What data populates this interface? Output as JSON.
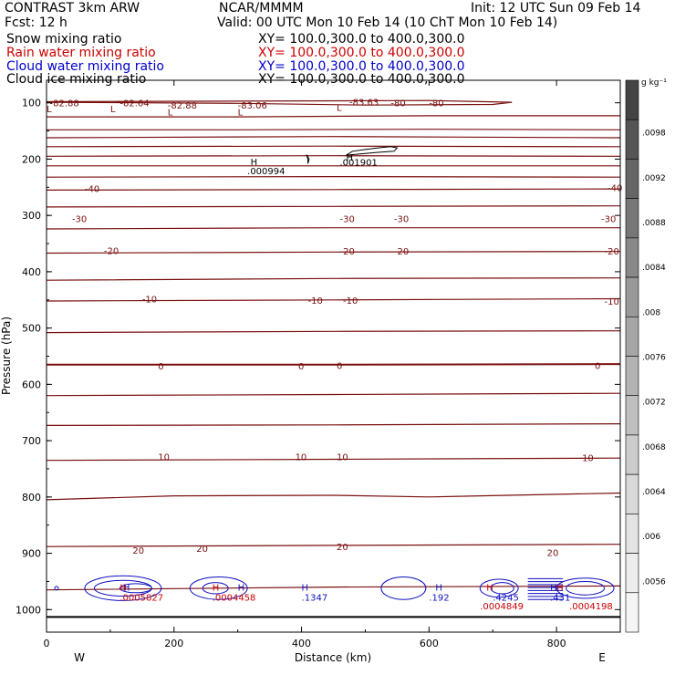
{
  "header": {
    "title": "CONTRAST  3km ARW",
    "org": "NCAR/MMMM",
    "init": "Init: 12 UTC Sun 09 Feb 14",
    "fcst": "Fcst:   12 h",
    "valid": "Valid: 00 UTC Mon 10 Feb 14 (10 ChT Mon 10 Feb 14)"
  },
  "legend": [
    {
      "label": "Snow mixing ratio",
      "xy": "XY= 100.0,300.0 to 400.0,300.0",
      "color": "#000000"
    },
    {
      "label": "Rain water mixing ratio",
      "xy": "XY= 100.0,300.0 to 400.0,300.0",
      "color": "#cc0000"
    },
    {
      "label": "Cloud water mixing ratio",
      "xy": "XY= 100.0,300.0 to 400.0,300.0",
      "color": "#0000cc"
    },
    {
      "label": "Cloud ice mixing ratio",
      "xy": "XY= 100.0,300.0 to 400.0,300.0",
      "color": "#000000"
    }
  ],
  "chart_data": {
    "type": "contour",
    "xlabel": "Distance (km)",
    "ylabel": "Pressure (hPa)",
    "xlim": [
      0,
      900
    ],
    "ylim": [
      1040,
      60
    ],
    "xticks": [
      0,
      200,
      400,
      600,
      800
    ],
    "yticks": [
      100,
      200,
      300,
      400,
      500,
      600,
      700,
      800,
      900,
      1000
    ],
    "x_end_labels": {
      "left": "W",
      "right": "E"
    },
    "temperature_contours": {
      "color": "#7a0f0f",
      "levels": [
        {
          "p": [
            [
              0,
              99
            ],
            [
              300,
              101
            ],
            [
              500,
              104
            ],
            [
              700,
              103
            ],
            [
              730,
              99
            ],
            [
              600,
              96
            ],
            [
              0,
              98
            ]
          ],
          "closed": true
        },
        {
          "p": [
            [
              0,
              125
            ],
            [
              300,
              125
            ],
            [
              600,
              123
            ],
            [
              900,
              123
            ]
          ]
        },
        {
          "p": [
            [
              0,
              148
            ],
            [
              300,
              148
            ],
            [
              600,
              147
            ],
            [
              900,
              148
            ]
          ]
        },
        {
          "p": [
            [
              0,
              162
            ],
            [
              450,
              160
            ],
            [
              900,
              162
            ]
          ]
        },
        {
          "p": [
            [
              0,
              178
            ],
            [
              450,
              177
            ],
            [
              900,
              178
            ]
          ]
        },
        {
          "p": [
            [
              0,
              195
            ],
            [
              450,
              194
            ],
            [
              900,
              195
            ]
          ]
        },
        {
          "p": [
            [
              0,
              212
            ],
            [
              450,
              212
            ],
            [
              900,
              212
            ]
          ]
        },
        {
          "p": [
            [
              0,
              232
            ],
            [
              450,
              231
            ],
            [
              900,
              232
            ]
          ]
        },
        {
          "p": [
            [
              0,
              255
            ],
            [
              450,
              254
            ],
            [
              900,
              253
            ]
          ]
        },
        {
          "p": [
            [
              0,
              285
            ],
            [
              450,
              284
            ],
            [
              900,
              283
            ]
          ]
        },
        {
          "p": [
            [
              0,
              324
            ],
            [
              450,
              322
            ],
            [
              900,
              322
            ]
          ]
        },
        {
          "p": [
            [
              0,
              367
            ],
            [
              450,
              365
            ],
            [
              900,
              364
            ]
          ]
        },
        {
          "p": [
            [
              0,
              415
            ],
            [
              450,
              412
            ],
            [
              900,
              411
            ]
          ]
        },
        {
          "p": [
            [
              0,
              452
            ],
            [
              450,
              450
            ],
            [
              900,
              448
            ]
          ]
        },
        {
          "p": [
            [
              0,
              508
            ],
            [
              450,
              506
            ],
            [
              900,
              505
            ]
          ]
        },
        {
          "p": [
            [
              0,
              565
            ],
            [
              450,
              565
            ],
            [
              900,
              564
            ]
          ]
        },
        {
          "p": [
            [
              0,
              620
            ],
            [
              450,
              618
            ],
            [
              900,
              616
            ]
          ]
        },
        {
          "p": [
            [
              0,
              673
            ],
            [
              450,
              672
            ],
            [
              900,
              670
            ]
          ]
        },
        {
          "p": [
            [
              0,
              735
            ],
            [
              450,
              733
            ],
            [
              900,
              731
            ]
          ]
        },
        {
          "p": [
            [
              0,
              805
            ],
            [
              200,
              798
            ],
            [
              450,
              797
            ],
            [
              600,
              800
            ],
            [
              900,
              793
            ]
          ]
        },
        {
          "p": [
            [
              0,
              888
            ],
            [
              450,
              886
            ],
            [
              900,
              884
            ]
          ]
        },
        {
          "p": [
            [
              0,
              965
            ],
            [
              450,
              960
            ],
            [
              900,
              958
            ]
          ]
        }
      ],
      "labels": [
        {
          "x": 0,
          "p": 110,
          "t": "L"
        },
        {
          "x": 5,
          "p": 100,
          "t": "-82.88"
        },
        {
          "x": 100,
          "p": 110,
          "t": "L"
        },
        {
          "x": 115,
          "p": 100,
          "t": "-82.64"
        },
        {
          "x": 190,
          "p": 116,
          "t": "L"
        },
        {
          "x": 190,
          "p": 104,
          "t": "-82.88"
        },
        {
          "x": 300,
          "p": 116,
          "t": "L"
        },
        {
          "x": 300,
          "p": 104,
          "t": "-83.06"
        },
        {
          "x": 455,
          "p": 108,
          "t": "L"
        },
        {
          "x": 475,
          "p": 98,
          "t": "-83.63"
        },
        {
          "x": 540,
          "p": 100,
          "t": "-80"
        },
        {
          "x": 600,
          "p": 100,
          "t": "-80"
        },
        {
          "x": 60,
          "p": 252,
          "t": "-40"
        },
        {
          "x": 880,
          "p": 250,
          "t": "-40"
        },
        {
          "x": 40,
          "p": 305,
          "t": "-30"
        },
        {
          "x": 460,
          "p": 305,
          "t": "-30"
        },
        {
          "x": 545,
          "p": 305,
          "t": "-30"
        },
        {
          "x": 870,
          "p": 305,
          "t": "-30"
        },
        {
          "x": 90,
          "p": 362,
          "t": "-20"
        },
        {
          "x": 460,
          "p": 363,
          "t": "-20"
        },
        {
          "x": 545,
          "p": 363,
          "t": "-20"
        },
        {
          "x": 875,
          "p": 363,
          "t": "-20"
        },
        {
          "x": 150,
          "p": 448,
          "t": "-10"
        },
        {
          "x": 410,
          "p": 450,
          "t": "-10"
        },
        {
          "x": 465,
          "p": 450,
          "t": "-10"
        },
        {
          "x": 875,
          "p": 452,
          "t": "-10"
        },
        {
          "x": 175,
          "p": 567,
          "t": "0"
        },
        {
          "x": 395,
          "p": 567,
          "t": "0"
        },
        {
          "x": 455,
          "p": 566,
          "t": "0"
        },
        {
          "x": 860,
          "p": 566,
          "t": "0"
        },
        {
          "x": 175,
          "p": 728,
          "t": "10"
        },
        {
          "x": 390,
          "p": 728,
          "t": "10"
        },
        {
          "x": 455,
          "p": 728,
          "t": "10"
        },
        {
          "x": 840,
          "p": 730,
          "t": "10"
        },
        {
          "x": 135,
          "p": 894,
          "t": "20"
        },
        {
          "x": 235,
          "p": 891,
          "t": "20"
        },
        {
          "x": 455,
          "p": 888,
          "t": "20"
        },
        {
          "x": 785,
          "p": 898,
          "t": "20"
        }
      ]
    },
    "ice_contours": {
      "color": "#000000",
      "paths": [
        [
          [
            470,
            193
          ],
          [
            480,
            186
          ],
          [
            500,
            183
          ],
          [
            520,
            180
          ],
          [
            540,
            178
          ],
          [
            550,
            180
          ],
          [
            545,
            186
          ],
          [
            520,
            188
          ],
          [
            500,
            190
          ],
          [
            470,
            193
          ]
        ],
        [
          [
            410,
            208
          ],
          [
            412,
            200
          ],
          [
            408,
            192
          ],
          [
            410,
            200
          ],
          [
            410,
            208
          ]
        ]
      ],
      "labels": [
        {
          "x": 470,
          "p": 196,
          "t": "H"
        },
        {
          "x": 460,
          "p": 205,
          "t": ".001901"
        },
        {
          "x": 320,
          "p": 204,
          "t": "H"
        },
        {
          "x": 315,
          "p": 220,
          "t": ".000994"
        }
      ]
    },
    "snow_line": {
      "color": "#000000",
      "p": 1013
    },
    "cloud_water": {
      "color": "#1010c0",
      "rings": [
        {
          "x": 120,
          "p": 962,
          "rx": 60,
          "rp": 22
        },
        {
          "x": 120,
          "p": 962,
          "rx": 45,
          "rp": 14
        },
        {
          "x": 140,
          "p": 962,
          "rx": 25,
          "rp": 8
        },
        {
          "x": 270,
          "p": 962,
          "rx": 45,
          "rp": 20
        },
        {
          "x": 265,
          "p": 962,
          "rx": 20,
          "rp": 10
        },
        {
          "x": 560,
          "p": 962,
          "rx": 35,
          "rp": 20
        },
        {
          "x": 710,
          "p": 962,
          "rx": 30,
          "rp": 16
        },
        {
          "x": 715,
          "p": 962,
          "rx": 18,
          "rp": 10
        },
        {
          "x": 845,
          "p": 962,
          "rx": 45,
          "rp": 18
        },
        {
          "x": 845,
          "p": 962,
          "rx": 30,
          "rp": 12
        }
      ],
      "hatch": {
        "x0": 755,
        "x1": 810,
        "p0": 945,
        "p1": 982
      },
      "labels": [
        {
          "x": 120,
          "p": 960,
          "t": "H"
        },
        {
          "x": 300,
          "p": 960,
          "t": "H"
        },
        {
          "x": 400,
          "p": 960,
          "t": "H"
        },
        {
          "x": 400,
          "p": 978,
          "t": ".1347"
        },
        {
          "x": 610,
          "p": 960,
          "t": "H"
        },
        {
          "x": 600,
          "p": 978,
          "t": ".192"
        },
        {
          "x": 700,
          "p": 978,
          "t": ".4245"
        },
        {
          "x": 790,
          "p": 960,
          "t": "H"
        },
        {
          "x": 790,
          "p": 978,
          "t": ".431"
        }
      ]
    },
    "rain_water": {
      "color": "#cc0000",
      "labels": [
        {
          "x": 115,
          "p": 960,
          "t": "H"
        },
        {
          "x": 115,
          "p": 978,
          "t": ".0005827"
        },
        {
          "x": 260,
          "p": 960,
          "t": "H"
        },
        {
          "x": 260,
          "p": 978,
          "t": ".0004458"
        },
        {
          "x": 690,
          "p": 960,
          "t": "H"
        },
        {
          "x": 680,
          "p": 993,
          "t": ".0004849"
        },
        {
          "x": 800,
          "p": 960,
          "t": "H"
        },
        {
          "x": 820,
          "p": 993,
          "t": ".0004198"
        }
      ]
    },
    "colorbar": {
      "unit": "g kg⁻¹",
      "ticks": [
        ".0098",
        ".0092",
        ".0088",
        ".0084",
        ".008",
        ".0076",
        ".0072",
        ".0068",
        ".0064",
        ".006",
        ".0056"
      ],
      "colors": [
        "#444444",
        "#555555",
        "#666666",
        "#777777",
        "#888888",
        "#999999",
        "#a6a6a6",
        "#b3b3b3",
        "#bfbfbf",
        "#cccccc",
        "#d9d9d9",
        "#e3e3e3",
        "#ededed",
        "#f5f5f5"
      ]
    }
  }
}
